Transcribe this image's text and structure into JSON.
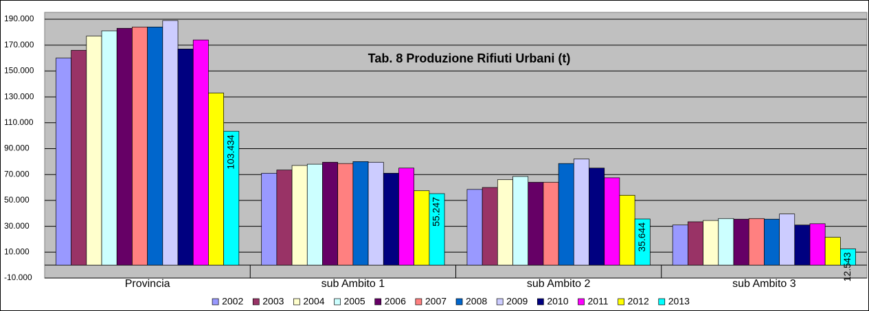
{
  "chart_data": {
    "type": "bar",
    "title": "Tab. 8 Produzione Rifiuti Urbani (t)",
    "categories": [
      "Provincia",
      "sub Ambito 1",
      "sub Ambito 2",
      "sub Ambito 3"
    ],
    "series": [
      {
        "name": "2002",
        "color": "#9999ff",
        "values": [
          160000,
          71000,
          58500,
          31000
        ]
      },
      {
        "name": "2003",
        "color": "#993366",
        "values": [
          166000,
          73500,
          60000,
          33500
        ]
      },
      {
        "name": "2004",
        "color": "#ffffcc",
        "values": [
          177000,
          77000,
          66000,
          34500
        ]
      },
      {
        "name": "2005",
        "color": "#ccffff",
        "values": [
          181000,
          78000,
          68500,
          36000
        ]
      },
      {
        "name": "2006",
        "color": "#660066",
        "values": [
          183000,
          79500,
          64000,
          35500
        ]
      },
      {
        "name": "2007",
        "color": "#ff8080",
        "values": [
          184000,
          78500,
          64000,
          36000
        ]
      },
      {
        "name": "2008",
        "color": "#0066cc",
        "values": [
          184000,
          80000,
          78500,
          35500
        ]
      },
      {
        "name": "2009",
        "color": "#ccccff",
        "values": [
          189000,
          79500,
          82000,
          39500
        ]
      },
      {
        "name": "2010",
        "color": "#000080",
        "values": [
          167000,
          71000,
          75000,
          31000
        ]
      },
      {
        "name": "2011",
        "color": "#ff00ff",
        "values": [
          174000,
          75000,
          67500,
          32000
        ]
      },
      {
        "name": "2012",
        "color": "#ffff00",
        "values": [
          133000,
          57500,
          54000,
          21500
        ]
      },
      {
        "name": "2013",
        "color": "#00ffff",
        "values": [
          103434,
          55247,
          35644,
          12543
        ],
        "value_labels": [
          "103.434",
          "55.247",
          "35.644",
          "12.543"
        ]
      }
    ],
    "ylim": [
      -10000,
      190000
    ],
    "yticks": [
      {
        "value": -10000,
        "label": "-10.000"
      },
      {
        "value": 10000,
        "label": "10.000"
      },
      {
        "value": 30000,
        "label": "30.000"
      },
      {
        "value": 50000,
        "label": "50.000"
      },
      {
        "value": 70000,
        "label": "70.000"
      },
      {
        "value": 90000,
        "label": "90.000"
      },
      {
        "value": 110000,
        "label": "110.000"
      },
      {
        "value": 130000,
        "label": "130.000"
      },
      {
        "value": 150000,
        "label": "150.000"
      },
      {
        "value": 170000,
        "label": "170.000"
      },
      {
        "value": 190000,
        "label": "190.000"
      }
    ],
    "grid": true,
    "legend": "bottom"
  }
}
